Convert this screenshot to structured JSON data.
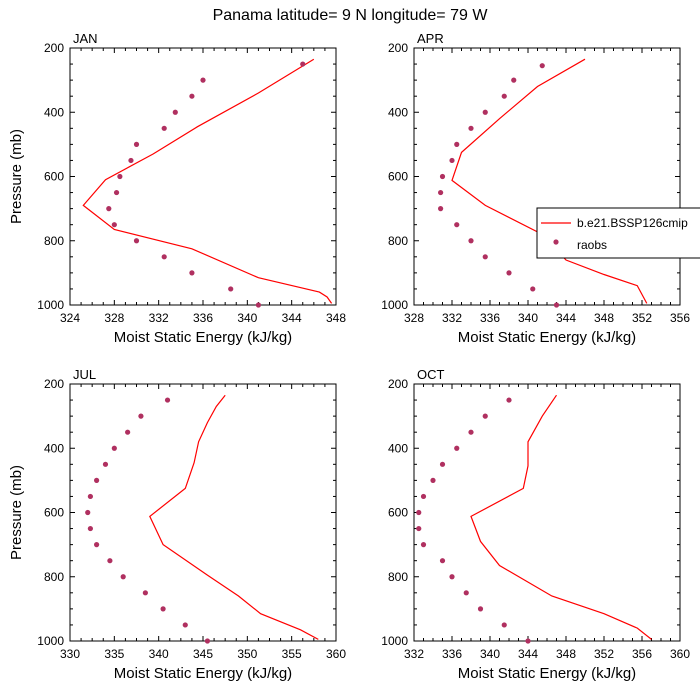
{
  "figure_title": "Panama  latitude= 9 N longitude= 79 W",
  "colors": {
    "model_line": "#ff0000",
    "raobs_marker": "#b03060",
    "axis": "#000000"
  },
  "legend": {
    "panel": "APR",
    "entries": [
      {
        "label": "b.e21.BSSP126cmip",
        "style": "line"
      },
      {
        "label": "raobs",
        "style": "marker"
      }
    ]
  },
  "chart_data": [
    {
      "panel": "JAN",
      "type": "line",
      "xlabel": "Moist Static Energy (kJ/kg)",
      "ylabel": "Pressure (mb)",
      "xlim": [
        324,
        348
      ],
      "ylim": [
        1000,
        200
      ],
      "xticks": [
        324,
        328,
        332,
        336,
        340,
        344,
        348
      ],
      "yticks": [
        200,
        400,
        600,
        800,
        1000
      ],
      "series": [
        {
          "name": "b.e21.BSSP126cmip",
          "type": "line",
          "points": [
            [
              346.0,
              235
            ],
            [
              341.0,
              340
            ],
            [
              335.5,
              445
            ],
            [
              331.5,
              530
            ],
            [
              327.2,
              610
            ],
            [
              325.2,
              690
            ],
            [
              328.0,
              765
            ],
            [
              335.0,
              825
            ],
            [
              341.0,
              915
            ],
            [
              346.5,
              960
            ],
            [
              347.2,
              975
            ],
            [
              347.6,
              995
            ]
          ]
        },
        {
          "name": "raobs",
          "type": "scatter",
          "points": [
            [
              345.0,
              250
            ],
            [
              336.0,
              300
            ],
            [
              335.0,
              350
            ],
            [
              333.5,
              400
            ],
            [
              332.5,
              450
            ],
            [
              330.0,
              500
            ],
            [
              329.5,
              550
            ],
            [
              328.5,
              600
            ],
            [
              328.2,
              650
            ],
            [
              327.5,
              700
            ],
            [
              328.0,
              750
            ],
            [
              330.0,
              800
            ],
            [
              332.5,
              850
            ],
            [
              335.0,
              900
            ],
            [
              338.5,
              950
            ],
            [
              341.0,
              1000
            ]
          ]
        }
      ]
    },
    {
      "panel": "APR",
      "type": "line",
      "xlabel": "Moist Static Energy (kJ/kg)",
      "ylabel": "",
      "xlim": [
        328,
        356
      ],
      "ylim": [
        1000,
        200
      ],
      "xticks": [
        328,
        332,
        336,
        340,
        344,
        348,
        352,
        356
      ],
      "yticks": [
        200,
        400,
        600,
        800,
        1000
      ],
      "series": [
        {
          "name": "b.e21.BSSP126cmip",
          "type": "line",
          "points": [
            [
              346.0,
              235
            ],
            [
              341.0,
              320
            ],
            [
              337.0,
              420
            ],
            [
              333.0,
              525
            ],
            [
              332.0,
              612
            ],
            [
              335.5,
              690
            ],
            [
              341.5,
              780
            ],
            [
              344.0,
              860
            ],
            [
              348.0,
              905
            ],
            [
              351.5,
              940
            ],
            [
              352.5,
              995
            ]
          ]
        },
        {
          "name": "raobs",
          "type": "scatter",
          "points": [
            [
              341.5,
              255
            ],
            [
              338.5,
              300
            ],
            [
              337.5,
              350
            ],
            [
              335.5,
              400
            ],
            [
              334.0,
              450
            ],
            [
              332.5,
              500
            ],
            [
              332.0,
              550
            ],
            [
              331.0,
              600
            ],
            [
              330.8,
              650
            ],
            [
              330.8,
              700
            ],
            [
              332.5,
              750
            ],
            [
              334.0,
              800
            ],
            [
              335.5,
              850
            ],
            [
              338.0,
              900
            ],
            [
              340.5,
              950
            ],
            [
              343.0,
              1000
            ]
          ]
        }
      ]
    },
    {
      "panel": "JUL",
      "type": "line",
      "xlabel": "Moist Static Energy (kJ/kg)",
      "ylabel": "Pressure (mb)",
      "xlim": [
        330,
        360
      ],
      "ylim": [
        1000,
        200
      ],
      "xticks": [
        330,
        335,
        340,
        345,
        350,
        355,
        360
      ],
      "yticks": [
        200,
        400,
        600,
        800,
        1000
      ],
      "series": [
        {
          "name": "b.e21.BSSP126cmip",
          "type": "line",
          "points": [
            [
              347.5,
              235
            ],
            [
              346.5,
              270
            ],
            [
              345.5,
              320
            ],
            [
              344.5,
              380
            ],
            [
              344.0,
              445
            ],
            [
              343.0,
              525
            ],
            [
              339.0,
              612
            ],
            [
              340.5,
              700
            ],
            [
              345.5,
              795
            ],
            [
              349.0,
              860
            ],
            [
              351.5,
              915
            ],
            [
              356.0,
              965
            ],
            [
              358.0,
              995
            ]
          ]
        },
        {
          "name": "raobs",
          "type": "scatter",
          "points": [
            [
              341.0,
              250
            ],
            [
              338.0,
              300
            ],
            [
              336.5,
              350
            ],
            [
              335.0,
              400
            ],
            [
              334.0,
              450
            ],
            [
              333.0,
              500
            ],
            [
              332.3,
              550
            ],
            [
              332.0,
              600
            ],
            [
              332.3,
              650
            ],
            [
              333.0,
              700
            ],
            [
              334.5,
              750
            ],
            [
              336.0,
              800
            ],
            [
              338.5,
              850
            ],
            [
              340.5,
              900
            ],
            [
              343.0,
              950
            ],
            [
              345.5,
              1000
            ]
          ]
        }
      ]
    },
    {
      "panel": "OCT",
      "type": "line",
      "xlabel": "Moist Static Energy (kJ/kg)",
      "ylabel": "",
      "xlim": [
        332,
        360
      ],
      "ylim": [
        1000,
        200
      ],
      "xticks": [
        332,
        336,
        340,
        344,
        348,
        352,
        356,
        360
      ],
      "yticks": [
        200,
        400,
        600,
        800,
        1000
      ],
      "series": [
        {
          "name": "b.e21.BSSP126cmip",
          "type": "line",
          "points": [
            [
              347.0,
              235
            ],
            [
              345.5,
              300
            ],
            [
              344.0,
              380
            ],
            [
              344.0,
              455
            ],
            [
              343.5,
              525
            ],
            [
              338.0,
              612
            ],
            [
              339.0,
              690
            ],
            [
              341.0,
              765
            ],
            [
              346.5,
              860
            ],
            [
              352.0,
              915
            ],
            [
              355.5,
              960
            ],
            [
              357.0,
              995
            ]
          ]
        },
        {
          "name": "raobs",
          "type": "scatter",
          "points": [
            [
              342.0,
              250
            ],
            [
              339.5,
              300
            ],
            [
              338.0,
              350
            ],
            [
              336.5,
              400
            ],
            [
              335.0,
              450
            ],
            [
              334.0,
              500
            ],
            [
              333.0,
              550
            ],
            [
              332.5,
              600
            ],
            [
              332.5,
              650
            ],
            [
              333.0,
              700
            ],
            [
              335.0,
              750
            ],
            [
              336.0,
              800
            ],
            [
              337.5,
              850
            ],
            [
              339.0,
              900
            ],
            [
              341.5,
              950
            ],
            [
              344.0,
              1000
            ]
          ]
        }
      ]
    }
  ]
}
